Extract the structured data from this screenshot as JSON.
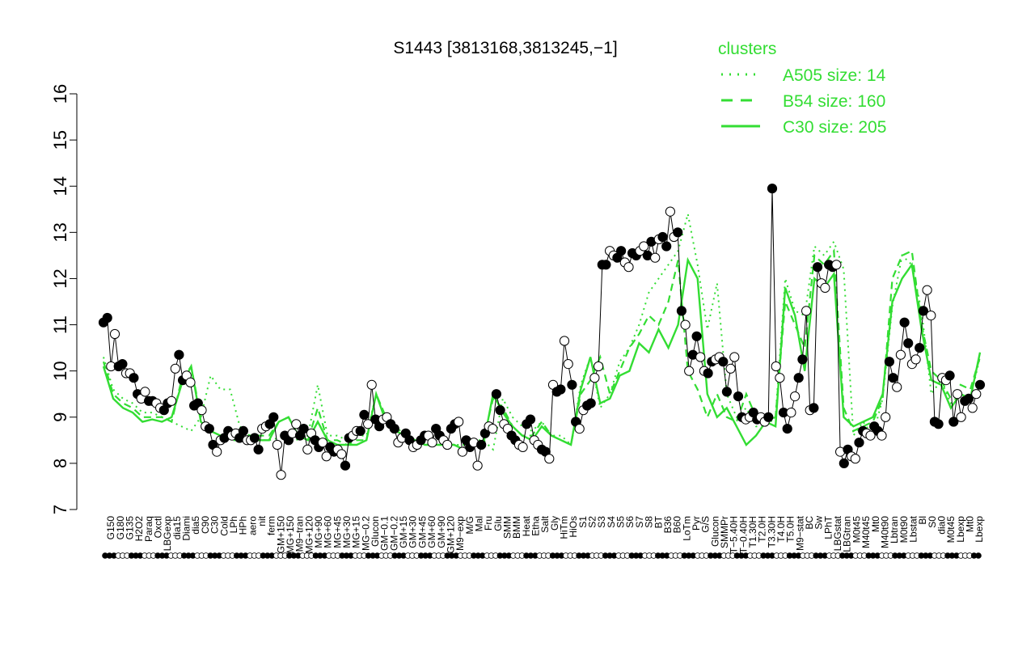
{
  "chart_data": {
    "type": "line",
    "title": "S1443 [3813168,3813245,−1]",
    "ylim": [
      7,
      16
    ],
    "yticks": [
      7,
      8,
      9,
      10,
      11,
      12,
      13,
      14,
      15,
      16
    ],
    "legend": {
      "title": "clusters",
      "placement": "top-right",
      "entries": [
        "A505 size: 14",
        "B54 size: 160",
        "C30 size: 205"
      ]
    },
    "colors": {
      "cluster_lines": "#33dd33",
      "data_line": "#000000"
    },
    "x_tick_labels": [
      "G150",
      "G180",
      "G135",
      "H2O2",
      "Paraq",
      "Oxctl",
      "LBGexp",
      "dia15",
      "Diami",
      "dia5",
      "C90",
      "C30",
      "Cold",
      "LPh",
      "HPh",
      "aero",
      "nit",
      "ferm",
      "GM+150",
      "MG+150",
      "M9−tran",
      "MG+120",
      "MG+90",
      "MG+60",
      "MG+45",
      "MG+30",
      "MG+15",
      "MG−0.2",
      "Glucon",
      "GM−0.1",
      "GM−0.2",
      "GM+15",
      "GM+30",
      "GM+45",
      "GM+60",
      "GM+90",
      "GM+120",
      "M9−exp",
      "M/G",
      "Mal",
      "Fru",
      "Glu",
      "SMM",
      "BMM",
      "Heat",
      "Etha",
      "Salt",
      "Gly",
      "HiTm",
      "HiOs",
      "S1",
      "S2",
      "S3",
      "S4",
      "S5",
      "S6",
      "S7",
      "S8",
      "BT",
      "B36",
      "B60",
      "LoTm",
      "Pyr",
      "G/S",
      "Glucon",
      "SMMPr",
      "T−5.40H",
      "T−0.40H",
      "T1.30H",
      "T2.0H",
      "T3.30H",
      "T4.0H",
      "T5.0H",
      "M9−stat",
      "BC",
      "Sw",
      "LPhT",
      "LBGstat",
      "LBGtran",
      "M0t45",
      "M40t45",
      "Mt0",
      "M40t90",
      "Lbtran",
      "M0t90",
      "Lbstat",
      "Bl",
      "S0",
      "dia0",
      "M0t45",
      "Lbexp",
      "Mt0",
      "Lbexp"
    ],
    "series": [
      {
        "values": [
          11.05,
          11.15,
          10.1,
          10.8,
          10.1,
          10.15,
          9.95,
          9.95,
          9.85,
          9.5,
          9.4,
          9.55,
          9.35,
          9.35,
          9.3,
          9.2,
          9.15,
          9.3,
          9.35,
          10.05,
          10.35,
          9.8,
          9.9,
          9.75,
          9.25,
          9.3,
          9.15,
          8.8,
          8.75,
          8.4,
          8.25,
          8.5,
          8.55,
          8.7,
          8.6,
          8.65,
          8.55,
          8.7,
          8.5,
          8.5,
          8.55,
          8.3,
          8.75,
          8.8,
          8.85,
          9.0,
          8.4,
          7.75,
          8.6,
          8.5,
          8.65,
          8.85,
          8.6,
          8.75,
          8.3,
          8.65,
          8.5,
          8.35,
          8.45,
          8.15,
          8.35,
          8.25,
          8.3,
          8.2,
          7.95,
          8.55,
          8.6,
          8.7,
          8.7,
          9.05,
          8.85,
          9.7,
          8.95,
          8.8,
          8.95,
          9.0,
          8.85,
          8.75,
          8.45,
          8.55,
          8.65,
          8.5,
          8.35,
          8.4,
          8.5,
          8.6,
          8.6,
          8.45,
          8.75,
          8.6,
          8.5,
          8.4,
          8.75,
          8.85,
          8.9,
          8.25,
          8.5,
          8.35,
          8.45,
          7.95,
          8.4,
          8.65,
          8.8,
          8.75,
          9.5,
          9.15,
          8.85,
          8.75,
          8.6,
          8.5,
          8.4,
          8.35,
          8.85,
          8.95,
          8.5,
          8.4,
          8.3,
          8.25,
          8.1,
          9.7,
          9.55,
          9.6,
          10.65,
          10.15,
          9.7,
          8.9,
          8.75,
          9.15,
          9.25,
          9.3,
          9.85,
          10.1,
          12.3,
          12.3,
          12.6,
          12.5,
          12.45,
          12.6,
          12.35,
          12.25,
          12.55,
          12.5,
          12.6,
          12.7,
          12.5,
          12.8,
          12.45,
          12.85,
          12.9,
          12.7,
          13.45,
          12.9,
          13.0,
          11.3,
          11.0,
          10.0,
          10.35,
          10.75,
          10.3,
          10.0,
          9.95,
          10.2,
          10.25,
          10.3,
          10.2,
          9.55,
          10.05,
          10.3,
          9.45,
          9.0,
          8.95,
          9.0,
          9.1,
          8.95,
          9.0,
          8.9,
          9.0,
          13.95,
          10.1,
          9.85,
          9.1,
          8.75,
          9.1,
          9.45,
          9.85,
          10.25,
          11.3,
          9.15,
          9.2,
          12.25,
          11.9,
          11.8,
          12.3,
          12.25,
          12.3,
          8.25,
          8.0,
          8.3,
          8.15,
          8.1,
          8.45,
          8.7,
          8.65,
          8.6,
          8.8,
          8.7,
          8.6,
          9.0,
          10.2,
          9.85,
          9.65,
          10.35,
          11.05,
          10.6,
          10.15,
          10.25,
          10.5,
          11.3,
          11.75,
          11.2,
          8.9,
          8.85,
          9.85,
          9.8,
          9.9,
          8.9,
          9.5,
          9.0,
          9.35,
          9.4,
          9.2,
          9.5,
          9.7
        ]
      },
      {
        "name": "A505 size: 14",
        "values": [
          10.3,
          9.6,
          9.4,
          9.3,
          9.1,
          9.1,
          9.0,
          8.9,
          8.8,
          8.7,
          9.0,
          9.9,
          9.6,
          9.6,
          8.8,
          8.6,
          8.5,
          8.5,
          8.55,
          8.6,
          8.5,
          8.6,
          9.7,
          8.6,
          8.6,
          8.5,
          8.6,
          8.6,
          9.5,
          9.0,
          8.8,
          8.6,
          8.5,
          8.5,
          8.5,
          8.4,
          8.4,
          8.4,
          8.5,
          8.5,
          8.3,
          9.4,
          9.0,
          8.8,
          8.7,
          8.9,
          8.6,
          8.6,
          8.4,
          9.7,
          10.3,
          9.2,
          9.5,
          10.2,
          10.5,
          11.0,
          11.7,
          12.0,
          12.3,
          12.6,
          13.4,
          12.3,
          10.9,
          11.9,
          9.5,
          9.0,
          9.2,
          8.8,
          8.8,
          9.0,
          12.0,
          11.3,
          11.2,
          12.7,
          12.5,
          12.8,
          12.2,
          8.6,
          8.9,
          8.6,
          9.4,
          11.4,
          12.5,
          12.3,
          11.3,
          9.5,
          9.8,
          9.3,
          9.5,
          9.4,
          10.3
        ]
      },
      {
        "name": "B54 size: 160",
        "values": [
          10.2,
          9.5,
          9.3,
          9.2,
          9.0,
          9.0,
          9.0,
          8.9,
          9.8,
          10.1,
          9.0,
          8.7,
          8.6,
          8.5,
          8.5,
          8.6,
          8.6,
          8.6,
          8.9,
          9.0,
          8.6,
          8.5,
          9.2,
          8.5,
          8.5,
          8.4,
          8.5,
          8.5,
          9.5,
          9.0,
          8.7,
          8.6,
          8.5,
          8.4,
          8.4,
          8.4,
          8.4,
          8.3,
          8.4,
          8.5,
          9.4,
          9.2,
          8.8,
          8.6,
          8.6,
          8.9,
          8.6,
          8.5,
          8.4,
          9.5,
          9.8,
          10.3,
          9.5,
          10.0,
          10.5,
          10.8,
          11.2,
          11.0,
          11.5,
          12.4,
          10.0,
          9.6,
          9.0,
          9.5,
          9.0,
          8.9,
          9.5,
          9.0,
          8.9,
          9.0,
          11.5,
          11.0,
          10.5,
          12.5,
          12.3,
          12.6,
          9.2,
          8.7,
          8.8,
          8.9,
          9.4,
          12.0,
          12.5,
          12.6,
          11.0,
          10.0,
          9.8,
          9.4,
          9.7,
          9.6,
          10.3
        ]
      },
      {
        "name": "C30 size: 205",
        "values": [
          10.1,
          9.4,
          9.2,
          9.1,
          8.9,
          8.95,
          8.9,
          9.0,
          9.7,
          10.1,
          8.9,
          8.7,
          8.6,
          8.6,
          8.5,
          8.6,
          8.5,
          8.5,
          8.9,
          9.0,
          8.6,
          8.5,
          8.9,
          8.5,
          8.4,
          8.4,
          8.4,
          8.5,
          9.5,
          8.9,
          8.7,
          8.6,
          8.5,
          8.4,
          8.4,
          8.4,
          8.4,
          8.3,
          8.4,
          8.4,
          9.5,
          9.1,
          8.8,
          8.6,
          8.5,
          8.8,
          8.6,
          8.5,
          8.4,
          9.6,
          10.3,
          9.3,
          9.4,
          9.9,
          10.0,
          10.6,
          10.4,
          10.9,
          10.5,
          11.0,
          12.4,
          12.0,
          9.5,
          9.0,
          9.2,
          8.8,
          8.4,
          8.6,
          8.9,
          8.8,
          11.8,
          11.2,
          10.0,
          12.0,
          11.8,
          12.1,
          9.0,
          8.8,
          8.9,
          9.0,
          9.5,
          11.5,
          12.0,
          12.3,
          10.9,
          9.8,
          9.7,
          9.2,
          9.5,
          9.4,
          10.4
        ]
      }
    ]
  }
}
